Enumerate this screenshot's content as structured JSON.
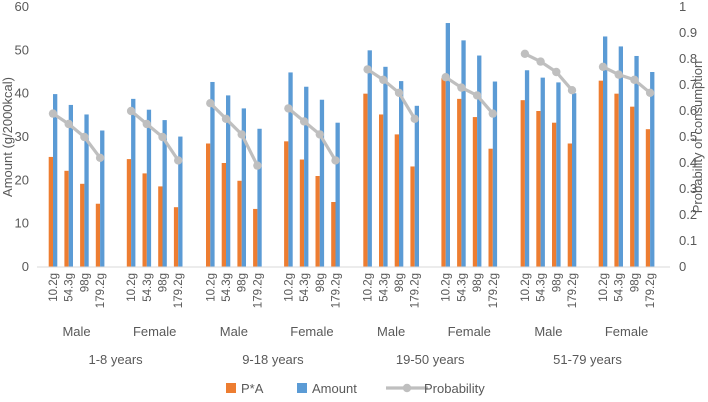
{
  "chart_data": {
    "type": "bar",
    "title": "",
    "ylabel": "Amount (g/2000kcal)",
    "y2label": "Probability of consumption",
    "ylim": [
      0,
      60
    ],
    "yticks": [
      0,
      10,
      20,
      30,
      40,
      50,
      60
    ],
    "y2lim": [
      0,
      1
    ],
    "y2ticks": [
      "0",
      "0.1",
      "0.2",
      "0.3",
      "0.4",
      "0.5",
      "0.6",
      "0.7",
      "0.8",
      "0.9",
      "1"
    ],
    "categories": [
      "10.2g",
      "54.3g",
      "98g",
      "179.2g"
    ],
    "age_groups": [
      {
        "label": "1-8 years",
        "sexes": [
          {
            "label": "Male",
            "pa": [
              25.4,
              22.2,
              19.2,
              14.6
            ],
            "amount": [
              39.9,
              37.4,
              35.2,
              31.5
            ],
            "probability": [
              0.59,
              0.55,
              0.5,
              0.42
            ]
          },
          {
            "label": "Female",
            "pa": [
              24.9,
              21.6,
              18.6,
              13.8
            ],
            "amount": [
              38.8,
              36.3,
              33.9,
              30.1
            ],
            "probability": [
              0.6,
              0.55,
              0.5,
              0.41
            ]
          }
        ]
      },
      {
        "label": "9-18 years",
        "sexes": [
          {
            "label": "Male",
            "pa": [
              28.5,
              24.0,
              19.9,
              13.4
            ],
            "amount": [
              42.7,
              39.6,
              36.6,
              31.9
            ],
            "probability": [
              0.63,
              0.57,
              0.51,
              0.39
            ]
          },
          {
            "label": "Female",
            "pa": [
              29.0,
              24.8,
              21.0,
              15.0
            ],
            "amount": [
              44.9,
              41.6,
              38.6,
              33.3
            ],
            "probability": [
              0.61,
              0.56,
              0.51,
              0.41
            ]
          }
        ]
      },
      {
        "label": "19-50 years",
        "sexes": [
          {
            "label": "Male",
            "pa": [
              40.0,
              35.2,
              30.6,
              23.2
            ],
            "amount": [
              50.0,
              46.2,
              42.9,
              37.2
            ],
            "probability": [
              0.76,
              0.72,
              0.67,
              0.57
            ]
          },
          {
            "label": "Female",
            "pa": [
              43.6,
              38.8,
              34.6,
              27.3
            ],
            "amount": [
              56.3,
              52.3,
              48.8,
              42.8
            ],
            "probability": [
              0.73,
              0.69,
              0.66,
              0.59
            ]
          }
        ]
      },
      {
        "label": "51-79 years",
        "sexes": [
          {
            "label": "Male",
            "pa": [
              38.5,
              36.0,
              33.3,
              28.5
            ],
            "amount": [
              45.4,
              43.7,
              42.6,
              40.1
            ],
            "probability": [
              0.82,
              0.79,
              0.75,
              0.68
            ]
          },
          {
            "label": "Female",
            "pa": [
              43.0,
              40.0,
              37.0,
              31.8
            ],
            "amount": [
              53.2,
              50.9,
              48.7,
              45.0
            ],
            "probability": [
              0.77,
              0.74,
              0.72,
              0.67
            ]
          }
        ]
      }
    ],
    "series": [
      {
        "name": "P*A",
        "color": "#ED7D31"
      },
      {
        "name": "Amount",
        "color": "#5B9BD5"
      },
      {
        "name": "Probability",
        "color": "#BFBFBF"
      }
    ],
    "grid": false,
    "legend": "bottom"
  }
}
